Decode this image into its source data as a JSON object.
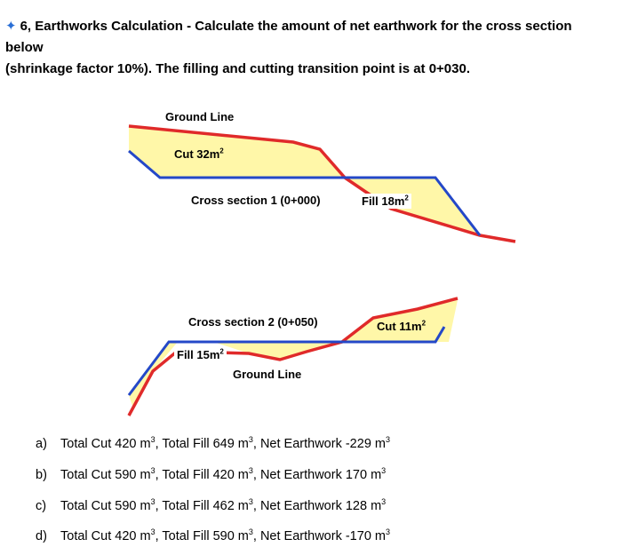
{
  "question": {
    "marker": "✦",
    "text_line1": "6, Earthworks Calculation - Calculate the amount of net earthwork for the cross section below",
    "text_line2": "(shrinkage factor 10%). The filling and cutting transition point is at 0+030."
  },
  "section1": {
    "ground_line_label": "Ground Line",
    "cut_label": "Cut 32m",
    "cut_unit_sup": "2",
    "section_label": "Cross section 1 (0+000)",
    "fill_label": "Fill 18m",
    "fill_unit_sup": "2"
  },
  "section2": {
    "section_label": "Cross section 2 (0+050)",
    "cut_label": "Cut 11m",
    "cut_unit_sup": "2",
    "fill_label": "Fill 15m",
    "fill_unit_sup": "2",
    "ground_line_label": "Ground Line"
  },
  "colors": {
    "ground_line": "#e02a2a",
    "design_line": "#2448c8",
    "area_fill": "#fff7a8",
    "marker": "#2a6fd6"
  },
  "options": [
    {
      "letter": "a)",
      "text": "Total Cut 420 m",
      "s1": "3",
      "text2": ", Total Fill 649 m",
      "s2": "3",
      "text3": ", Net Earthwork -229 m",
      "s3": "3"
    },
    {
      "letter": "b)",
      "text": "Total Cut 590 m",
      "s1": "3",
      "text2": ", Total Fill 420 m",
      "s2": "3",
      "text3": ", Net Earthwork 170 m",
      "s3": "3"
    },
    {
      "letter": "c)",
      "text": "Total Cut 590 m",
      "s1": "3",
      "text2": ", Total Fill 462 m",
      "s2": "3",
      "text3": ", Net Earthwork 128 m",
      "s3": "3"
    },
    {
      "letter": "d)",
      "text": "Total Cut 420 m",
      "s1": "3",
      "text2": ", Total Fill 590 m",
      "s2": "3",
      "text3": ", Net Earthwork -170 m",
      "s3": "3"
    }
  ]
}
